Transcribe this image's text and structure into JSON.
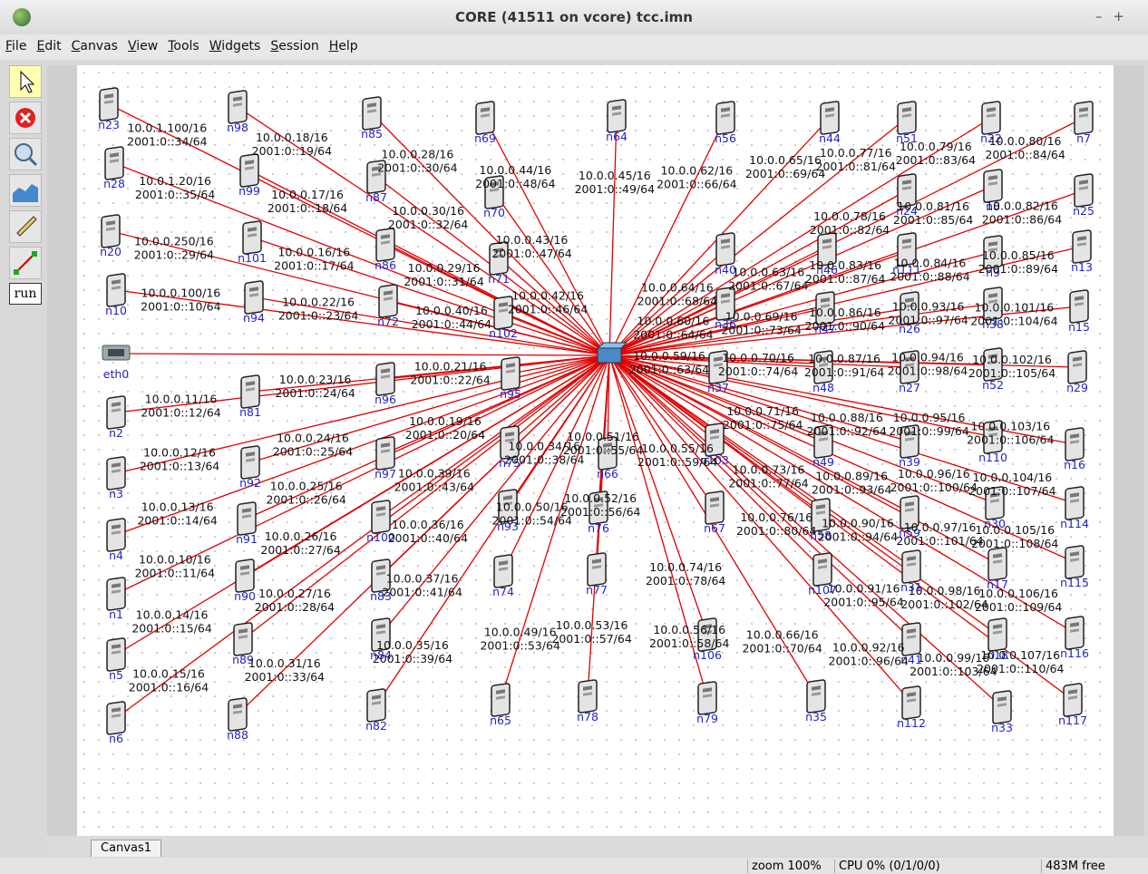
{
  "window": {
    "title": "CORE (41511 on vcore) tcc.imn"
  },
  "menu": [
    "File",
    "Edit",
    "Canvas",
    "View",
    "Tools",
    "Widgets",
    "Session",
    "Help"
  ],
  "toolbar": {
    "run": "run"
  },
  "tab": "Canvas1",
  "status": {
    "zoom": "zoom 100%",
    "cpu": "CPU 0% (0/1/0/0)",
    "memory": "483M free"
  },
  "nodes": [
    {
      "name": "n23",
      "ipv4": "10.0.1.100/16",
      "ipv6": "2001:0::34/64"
    },
    {
      "name": "n28",
      "ipv4": "10.0.1.20/16",
      "ipv6": "2001:0::35/64"
    },
    {
      "name": "n20",
      "ipv4": "10.0.0.250/16",
      "ipv6": "2001:0::29/64"
    },
    {
      "name": "n10",
      "ipv4": "10.0.0.100/16",
      "ipv6": "2001:0::10/64"
    },
    {
      "name": "eth0"
    },
    {
      "name": "n2",
      "ipv4": "10.0.0.11/16",
      "ipv6": "2001:0::12/64"
    },
    {
      "name": "n3",
      "ipv4": "10.0.0.12/16",
      "ipv6": "2001:0::13/64"
    },
    {
      "name": "n4",
      "ipv4": "10.0.0.13/16",
      "ipv6": "2001:0::14/64"
    },
    {
      "name": "n1",
      "ipv4": "10.0.0.10/16",
      "ipv6": "2001:0::11/64"
    },
    {
      "name": "n5",
      "ipv4": "10.0.0.14/16",
      "ipv6": "2001:0::15/64"
    },
    {
      "name": "n6",
      "ipv4": "10.0.0.15/16",
      "ipv6": "2001:0::16/64"
    },
    {
      "name": "n98",
      "ipv4": "10.0.0.18/16",
      "ipv6": "2001:0::19/64"
    },
    {
      "name": "n99",
      "ipv4": "10.0.0.17/16",
      "ipv6": "2001:0::18/64"
    },
    {
      "name": "n101",
      "ipv4": "10.0.0.16/16",
      "ipv6": "2001:0::17/64"
    },
    {
      "name": "n94",
      "ipv4": "10.0.0.22/16",
      "ipv6": "2001:0::23/64"
    },
    {
      "name": "n81",
      "ipv4": "10.0.0.23/16",
      "ipv6": "2001:0::24/64"
    },
    {
      "name": "n92",
      "ipv4": "10.0.0.24/16",
      "ipv6": "2001:0::25/64"
    },
    {
      "name": "n91",
      "ipv4": "10.0.0.25/16",
      "ipv6": "2001:0::26/64"
    },
    {
      "name": "n90",
      "ipv4": "10.0.0.26/16",
      "ipv6": "2001:0::27/64"
    },
    {
      "name": "n89",
      "ipv4": "10.0.0.27/16",
      "ipv6": "2001:0::28/64"
    },
    {
      "name": "n88",
      "ipv4": "10.0.0.31/16",
      "ipv6": "2001:0::33/64"
    },
    {
      "name": "n85",
      "ipv4": "10.0.0.28/16",
      "ipv6": "2001:0::30/64"
    },
    {
      "name": "n87",
      "ipv4": "10.0.0.30/16",
      "ipv6": "2001:0::32/64"
    },
    {
      "name": "n86",
      "ipv4": "10.0.0.29/16",
      "ipv6": "2001:0::31/64"
    },
    {
      "name": "n72",
      "ipv4": "10.0.0.40/16",
      "ipv6": "2001:0::44/64"
    },
    {
      "name": "n96",
      "ipv4": "10.0.0.21/16",
      "ipv6": "2001:0::22/64"
    },
    {
      "name": "n97",
      "ipv4": "10.0.0.19/16",
      "ipv6": "2001:0::20/64"
    },
    {
      "name": "n100",
      "ipv4": "10.0.0.39/16",
      "ipv6": "2001:0::43/64"
    },
    {
      "name": "n83",
      "ipv4": "10.0.0.36/16",
      "ipv6": "2001:0::40/64"
    },
    {
      "name": "n84",
      "ipv4": "10.0.0.37/16",
      "ipv6": "2001:0::41/64"
    },
    {
      "name": "n82",
      "ipv4": "10.0.0.35/16",
      "ipv6": "2001:0::39/64"
    },
    {
      "name": "n69",
      "ipv4": "10.0.0.44/16",
      "ipv6": "2001:0::48/64"
    },
    {
      "name": "n70",
      "ipv4": "10.0.0.43/16",
      "ipv6": "2001:0::47/64"
    },
    {
      "name": "n71",
      "ipv4": "10.0.0.42/16",
      "ipv6": "2001:0::46/64"
    },
    {
      "name": "n102"
    },
    {
      "name": "n95"
    },
    {
      "name": "n75"
    },
    {
      "name": "n93",
      "ipv4": "10.0.0.34/16",
      "ipv6": "2001:0::38/64"
    },
    {
      "name": "n74",
      "ipv4": "10.0.0.50/16",
      "ipv6": "2001:0::54/64"
    },
    {
      "name": "n65",
      "ipv4": "10.0.0.49/16",
      "ipv6": "2001:0::53/64"
    },
    {
      "name": "n64",
      "ipv4": "10.0.0.45/16",
      "ipv6": "2001:0::49/64"
    },
    {
      "name": "n66"
    },
    {
      "name": "n76",
      "ipv4": "10.0.0.51/16",
      "ipv6": "2001:0::55/64"
    },
    {
      "name": "n77",
      "ipv4": "10.0.0.52/16",
      "ipv6": "2001:0::56/64"
    },
    {
      "name": "n78",
      "ipv4": "10.0.0.53/16",
      "ipv6": "2001:0::57/64"
    },
    {
      "name": "n56",
      "ipv4": "10.0.0.62/16",
      "ipv6": "2001:0::66/64"
    },
    {
      "name": "n40",
      "ipv4": "10.0.0.64/16",
      "ipv6": "2001:0::68/64"
    },
    {
      "name": "n36",
      "ipv4": "10.0.0.60/16",
      "ipv6": "2001:0::64/64"
    },
    {
      "name": "n37",
      "ipv4": "10.0.0.59/16",
      "ipv6": "2001:0::63/64"
    },
    {
      "name": "n103"
    },
    {
      "name": "n67",
      "ipv4": "10.0.0.55/16",
      "ipv6": "2001:0::59/64"
    },
    {
      "name": "n106",
      "ipv4": "10.0.0.74/16",
      "ipv6": "2001:0::78/64"
    },
    {
      "name": "n79",
      "ipv4": "10.0.0.56/16",
      "ipv6": "2001:0::58/64"
    },
    {
      "name": "n44",
      "ipv4": "10.0.0.65/16",
      "ipv6": "2001:0::69/64"
    },
    {
      "name": "n46",
      "ipv4": "10.0.0.63/16",
      "ipv6": "2001:0::67/64"
    },
    {
      "name": "n47",
      "ipv4": "10.0.0.69/16",
      "ipv6": "2001:0::73/64"
    },
    {
      "name": "n48",
      "ipv4": "10.0.0.70/16",
      "ipv6": "2001:0::74/64"
    },
    {
      "name": "n49",
      "ipv4": "10.0.0.71/16",
      "ipv6": "2001:0::75/64"
    },
    {
      "name": "n58",
      "ipv4": "10.0.0.73/16",
      "ipv6": "2001:0::77/64"
    },
    {
      "name": "n107",
      "ipv4": "10.0.0.76/16",
      "ipv6": "2001:0::80/64"
    },
    {
      "name": "n35",
      "ipv4": "10.0.0.66/16",
      "ipv6": "2001:0::70/64"
    },
    {
      "name": "n51",
      "ipv4": "10.0.0.77/16",
      "ipv6": "2001:0::81/64"
    },
    {
      "name": "n24",
      "ipv4": "10.0.0.78/16",
      "ipv6": "2001:0::82/64"
    },
    {
      "name": "n111",
      "ipv4": "10.0.0.83/16",
      "ipv6": "2001:0::87/64"
    },
    {
      "name": "n26",
      "ipv4": "10.0.0.86/16",
      "ipv6": "2001:0::90/64"
    },
    {
      "name": "n27",
      "ipv4": "10.0.0.87/16",
      "ipv6": "2001:0::91/64"
    },
    {
      "name": "n39",
      "ipv4": "10.0.0.88/16",
      "ipv6": "2001:0::92/64"
    },
    {
      "name": "n59",
      "ipv4": "10.0.0.89/16",
      "ipv6": "2001:0::93/64"
    },
    {
      "name": "n31",
      "ipv4": "10.0.0.90/16",
      "ipv6": "2001:0::94/64"
    },
    {
      "name": "n41",
      "ipv4": "10.0.0.91/16",
      "ipv6": "2001:0::95/64"
    },
    {
      "name": "n112",
      "ipv4": "10.0.0.92/16",
      "ipv6": "2001:0::96/64"
    },
    {
      "name": "n22",
      "ipv4": "10.0.0.79/16",
      "ipv6": "2001:0::83/64"
    },
    {
      "name": "n8",
      "ipv4": "10.0.0.81/16",
      "ipv6": "2001:0::85/64"
    },
    {
      "name": "n9",
      "ipv4": "10.0.0.84/16",
      "ipv6": "2001:0::88/64"
    },
    {
      "name": "n38",
      "ipv4": "10.0.0.93/16",
      "ipv6": "2001:0::97/64"
    },
    {
      "name": "n52",
      "ipv4": "10.0.0.94/16",
      "ipv6": "2001:0::98/64"
    },
    {
      "name": "n110",
      "ipv4": "10.0.0.95/16",
      "ipv6": "2001:0::99/64"
    },
    {
      "name": "n30",
      "ipv4": "10.0.0.96/16",
      "ipv6": "2001:0::100/64"
    },
    {
      "name": "n17",
      "ipv4": "10.0.0.97/16",
      "ipv6": "2001:0::101/64"
    },
    {
      "name": "n18",
      "ipv4": "10.0.0.98/16",
      "ipv6": "2001:0::102/64"
    },
    {
      "name": "n33",
      "ipv4": "10.0.0.99/16",
      "ipv6": "2001:0::103/64"
    },
    {
      "name": "n7",
      "ipv4": "10.0.0.80/16",
      "ipv6": "2001:0::84/64"
    },
    {
      "name": "n25",
      "ipv4": "10.0.0.82/16",
      "ipv6": "2001:0::86/64"
    },
    {
      "name": "n13",
      "ipv4": "10.0.0.85/16",
      "ipv6": "2001:0::89/64"
    },
    {
      "name": "n15",
      "ipv4": "10.0.0.101/16",
      "ipv6": "2001:0::104/64"
    },
    {
      "name": "n29",
      "ipv4": "10.0.0.102/16",
      "ipv6": "2001:0::105/64"
    },
    {
      "name": "n16",
      "ipv4": "10.0.0.103/16",
      "ipv6": "2001:0::106/64"
    },
    {
      "name": "n114",
      "ipv4": "10.0.0.104/16",
      "ipv6": "2001:0::107/64"
    },
    {
      "name": "n115",
      "ipv4": "10.0.0.105/16",
      "ipv6": "2001:0::108/64"
    },
    {
      "name": "n116",
      "ipv4": "10.0.0.106/16",
      "ipv6": "2001:0::109/64"
    },
    {
      "name": "n117",
      "ipv4": "10.0.0.107/16",
      "ipv6": "2001:0::110/64"
    }
  ]
}
